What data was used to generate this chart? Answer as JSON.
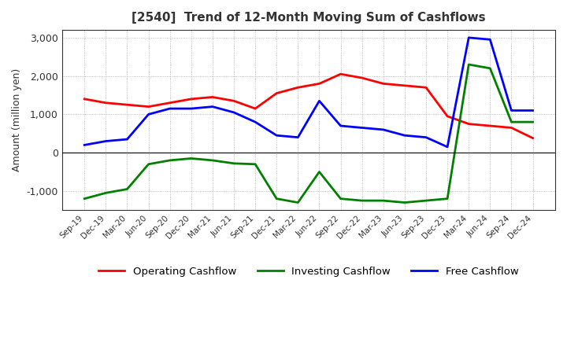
{
  "title": "[2540]  Trend of 12-Month Moving Sum of Cashflows",
  "ylabel": "Amount (million yen)",
  "ylim": [
    -1500,
    3200
  ],
  "yticks": [
    -1000,
    0,
    1000,
    2000,
    3000
  ],
  "x_labels": [
    "Sep-19",
    "Dec-19",
    "Mar-20",
    "Jun-20",
    "Sep-20",
    "Dec-20",
    "Mar-21",
    "Jun-21",
    "Sep-21",
    "Dec-21",
    "Mar-22",
    "Jun-22",
    "Sep-22",
    "Dec-22",
    "Mar-23",
    "Jun-23",
    "Sep-23",
    "Dec-23",
    "Mar-24",
    "Jun-24",
    "Sep-24",
    "Dec-24"
  ],
  "operating": [
    1400,
    1300,
    1250,
    1200,
    1300,
    1400,
    1450,
    1350,
    1150,
    1550,
    1700,
    1800,
    2050,
    1950,
    1800,
    1750,
    1700,
    950,
    750,
    700,
    650,
    380
  ],
  "investing": [
    -1200,
    -1050,
    -950,
    -300,
    -200,
    -150,
    -200,
    -280,
    -300,
    -1200,
    -1300,
    -500,
    -1200,
    -1250,
    -1250,
    -1300,
    -1250,
    -1200,
    2300,
    2200,
    800,
    800
  ],
  "free": [
    200,
    300,
    350,
    1000,
    1150,
    1150,
    1200,
    1050,
    800,
    450,
    400,
    1350,
    700,
    650,
    600,
    450,
    400,
    150,
    3000,
    2950,
    1100,
    1100
  ],
  "operating_color": "#ff0000",
  "investing_color": "#008000",
  "free_color": "#0000ff",
  "background_color": "#ffffff",
  "grid_color": "#aaaaaa"
}
